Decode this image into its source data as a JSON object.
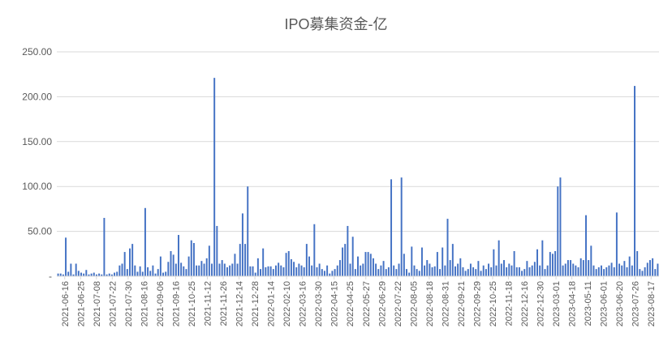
{
  "chart_data": {
    "type": "bar",
    "title": "IPO募集资金-亿",
    "xlabel": "",
    "ylabel": "",
    "ylim": [
      0,
      250
    ],
    "yticks": [
      "-",
      "50.00",
      "100.00",
      "150.00",
      "200.00",
      "250.00"
    ],
    "grid": true,
    "legend": "none",
    "bar_color": "#4472C4",
    "x_tick_labels": [
      "2021-06-16",
      "2021-06-25",
      "2021-07-08",
      "2021-07-22",
      "2021-07-30",
      "2021-08-16",
      "2021-09-06",
      "2021-09-16",
      "2021-10-25",
      "2021-11-12",
      "2021-11-26",
      "2021-12-14",
      "2021-12-28",
      "2022-01-14",
      "2022-02-10",
      "2022-03-16",
      "2022-03-30",
      "2022-04-15",
      "2022-04-25",
      "2022-05-27",
      "2022-06-29",
      "2022-07-22",
      "2022-08-05",
      "2022-08-18",
      "2022-08-31",
      "2022-09-21",
      "2022-09-29",
      "2022-10-25",
      "2022-11-18",
      "2022-12-16",
      "2022-12-30",
      "2023-03-01",
      "2023-04-18",
      "2023-05-11",
      "2023-06-01",
      "2023-06-20",
      "2023-07-26",
      "2023-08-17"
    ],
    "values": [
      3,
      3,
      2,
      43,
      5,
      14,
      2,
      14,
      6,
      4,
      3,
      7,
      2,
      3,
      4,
      2,
      3,
      2,
      65,
      2,
      3,
      2,
      4,
      5,
      12,
      14,
      27,
      8,
      31,
      36,
      12,
      5,
      11,
      5,
      76,
      10,
      6,
      12,
      3,
      8,
      22,
      4,
      5,
      16,
      28,
      24,
      14,
      46,
      15,
      11,
      8,
      22,
      40,
      37,
      12,
      12,
      17,
      14,
      20,
      34,
      14,
      221,
      56,
      14,
      18,
      14,
      10,
      12,
      14,
      25,
      14,
      36,
      70,
      36,
      100,
      11,
      11,
      4,
      20,
      8,
      31,
      10,
      11,
      11,
      8,
      12,
      15,
      12,
      10,
      26,
      28,
      19,
      16,
      10,
      14,
      12,
      10,
      36,
      22,
      12,
      58,
      10,
      14,
      8,
      6,
      12,
      3,
      6,
      8,
      12,
      18,
      32,
      36,
      56,
      14,
      44,
      8,
      22,
      12,
      14,
      27,
      27,
      25,
      20,
      14,
      8,
      12,
      17,
      8,
      10,
      108,
      12,
      8,
      14,
      110,
      25,
      8,
      4,
      33,
      12,
      8,
      6,
      32,
      12,
      18,
      14,
      10,
      11,
      27,
      8,
      32,
      12,
      64,
      18,
      36,
      11,
      14,
      20,
      10,
      6,
      8,
      14,
      10,
      8,
      17,
      6,
      12,
      8,
      14,
      10,
      30,
      12,
      40,
      14,
      18,
      10,
      14,
      12,
      28,
      10,
      10,
      6,
      8,
      17,
      10,
      12,
      16,
      30,
      12,
      40,
      8,
      12,
      27,
      25,
      28,
      100,
      110,
      12,
      14,
      18,
      18,
      14,
      12,
      10,
      20,
      18,
      68,
      18,
      34,
      12,
      8,
      10,
      12,
      8,
      10,
      12,
      15,
      10,
      71,
      14,
      12,
      17,
      10,
      22,
      12,
      212,
      28,
      8,
      6,
      10,
      15,
      18,
      20,
      8,
      14
    ]
  }
}
